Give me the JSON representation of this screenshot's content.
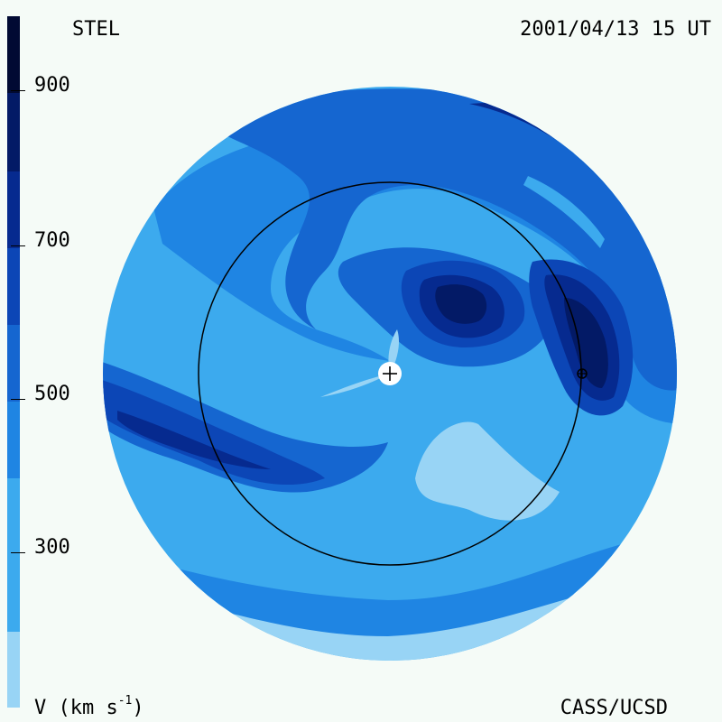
{
  "header": {
    "source": "STEL",
    "datetime": "2001/04/13 15 UT"
  },
  "footer": {
    "units_prefix": "V (km s",
    "units_exp": "-1",
    "units_suffix": ")",
    "credit": "CASS/UCSD"
  },
  "colorbar": {
    "tick_labels": [
      "900",
      "700",
      "500",
      "300"
    ],
    "colors": [
      "#98d4f5",
      "#3caaee",
      "#1f85e3",
      "#1566d0",
      "#0c46b6",
      "#062a8f",
      "#031a66",
      "#010a33"
    ]
  },
  "map": {
    "colors": {
      "v200": "#98d4f5",
      "v300": "#3caaee",
      "v400": "#1f85e3",
      "v500": "#1566d0",
      "v600": "#0c46b6",
      "v700": "#062a8f",
      "v800": "#031a66"
    }
  }
}
